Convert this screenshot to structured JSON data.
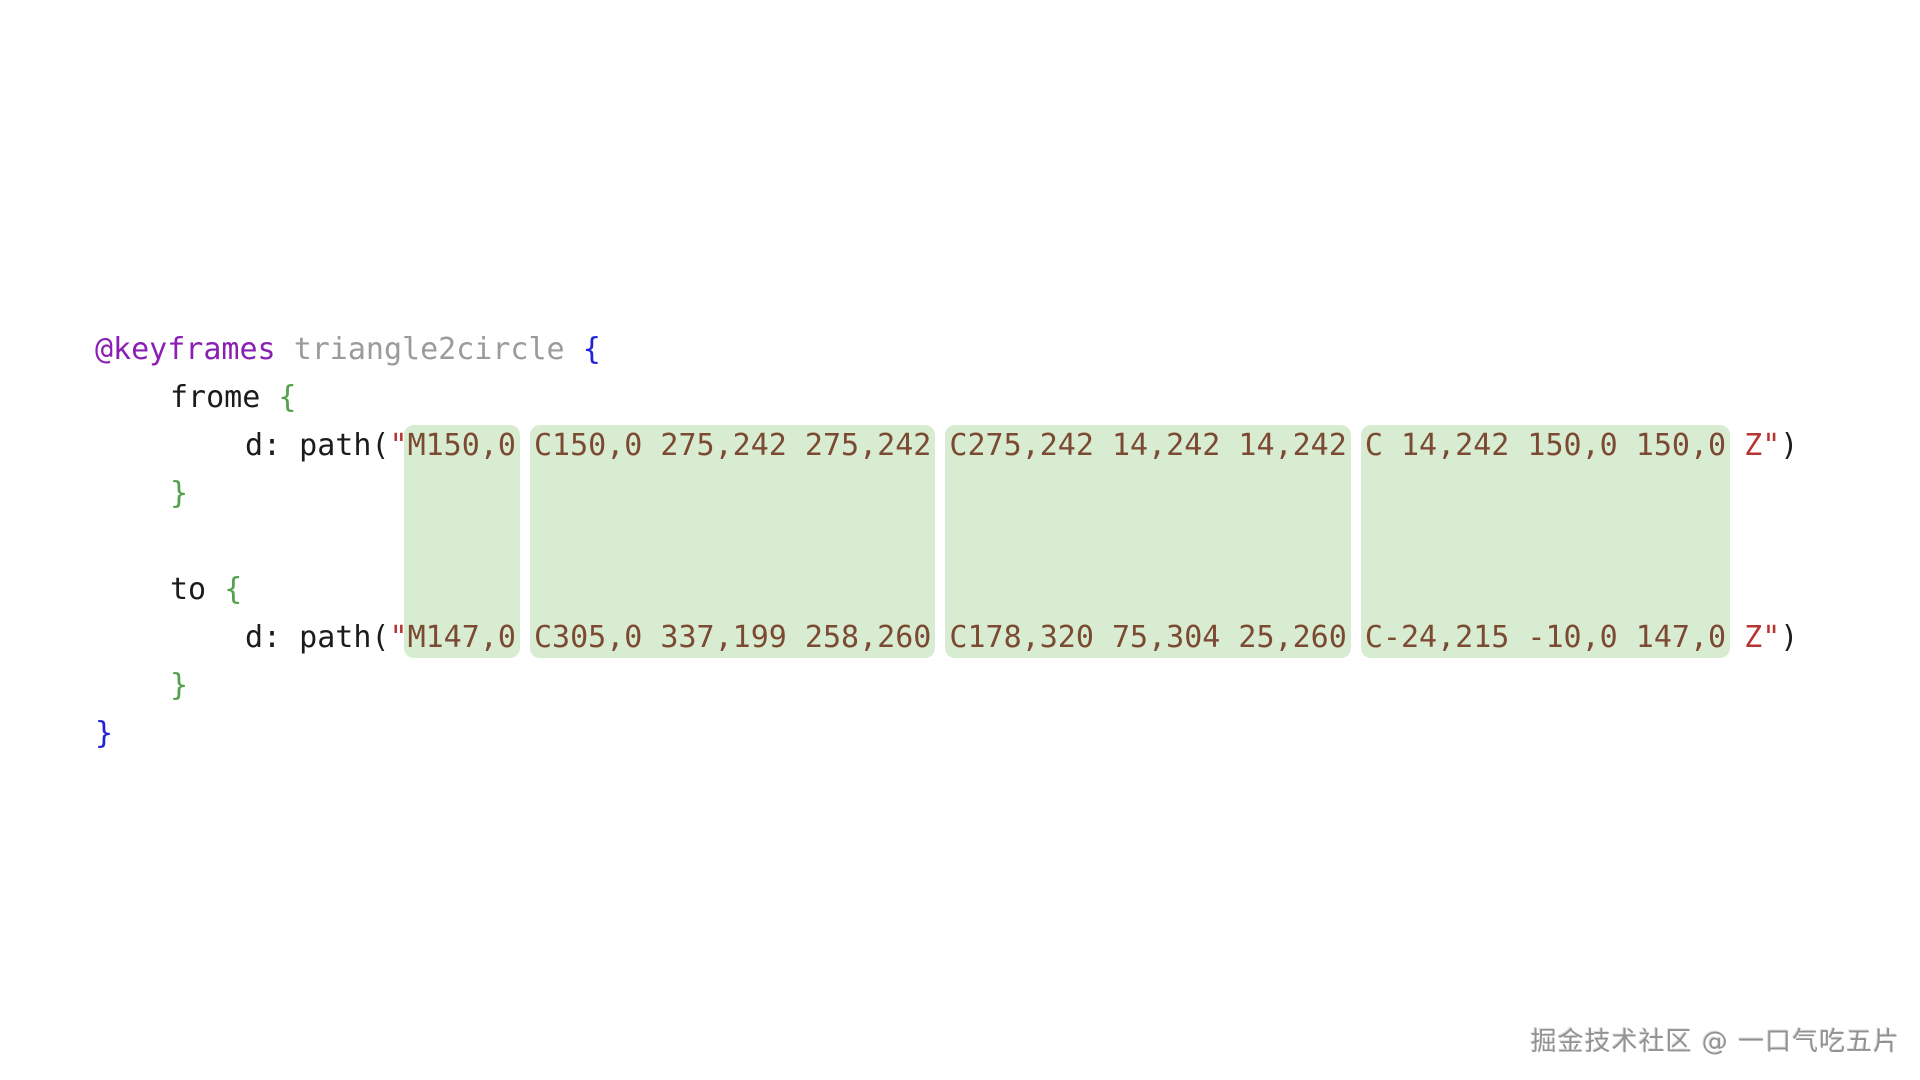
{
  "colors": {
    "keyword": "#8a1fb3",
    "identifier": "#9b9b9b",
    "brace_outer": "#2222d6",
    "brace_inner": "#55a04c",
    "text": "#1b1b1b",
    "string_delim": "#b73430",
    "path_data": "#7c4a33",
    "highlight": "#d7ecd1"
  },
  "code": {
    "sp": " ",
    "at_rule": "@keyframes",
    "animation_name": "triangle2circle",
    "brace_open": "{",
    "brace_close": "}",
    "from": {
      "selector": "frome",
      "decl_prefix": "d: path(",
      "quote": "\"",
      "seg": [
        "M150,0",
        "C150,0 275,242 275,242",
        "C275,242 14,242 14,242",
        "C 14,242 150,0 150,0"
      ],
      "z_close": "Z\"",
      "paren_close": ")"
    },
    "to": {
      "selector": "to",
      "decl_prefix": "d: path(",
      "quote": "\"",
      "seg": [
        "M147,0",
        "C305,0 337,199 258,260",
        "C178,320 75,304 25,260",
        "C-24,215 -10,0 147,0"
      ],
      "z_close": "Z\"",
      "paren_close": ")"
    }
  },
  "watermark": "掘金技术社区 @ 一口气吃五片"
}
